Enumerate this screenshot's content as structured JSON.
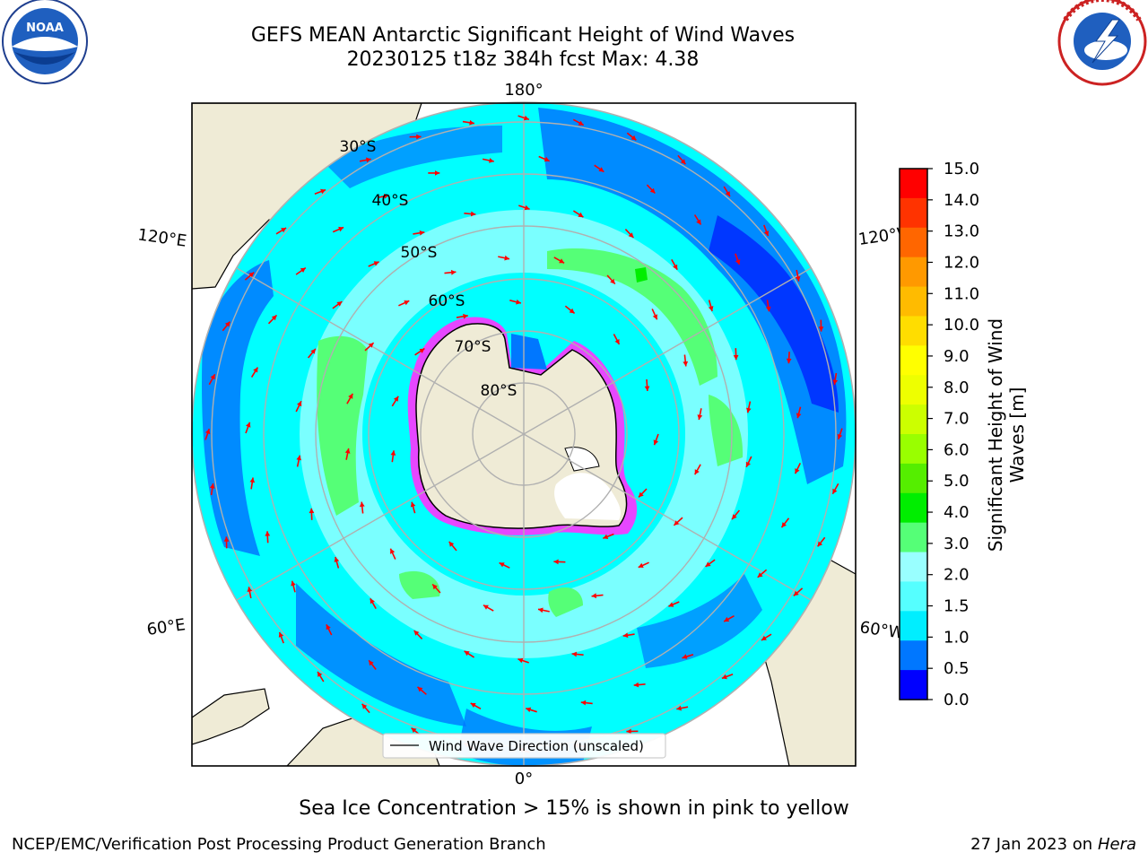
{
  "title": {
    "line1": "GEFS MEAN Antarctic Significant Height of Wind Waves",
    "line2": "20230125 t18z 384h fcst   Max: 4.38"
  },
  "logos": {
    "left": "NOAA",
    "left_ring_text": "NATIONAL OCEANIC AND ATMOSPHERIC ADMINISTRATION · U.S. DEPARTMENT OF COMMERCE",
    "right_ring_text": "NATIONAL WEATHER SERVICE"
  },
  "map": {
    "longitude_labels": {
      "top": "180°",
      "bottom": "0°",
      "upper_left": "120°E",
      "lower_left": "60°E",
      "upper_right": "120°W",
      "lower_right": "60°W"
    },
    "latitude_labels": [
      "30°S",
      "40°S",
      "50°S",
      "60°S",
      "70°S",
      "80°S"
    ],
    "legend": "Wind Wave Direction (unscaled)",
    "colors": {
      "ocean_base": "#00ffff",
      "land": "#efebd6",
      "arrow": "#ff0000",
      "grid": "#b0b0b0"
    }
  },
  "colorbar": {
    "title": "Significant Height of Wind Waves [m]",
    "ticks": [
      "15.0",
      "14.0",
      "13.0",
      "12.0",
      "11.0",
      "10.0",
      "9.0",
      "8.0",
      "7.0",
      "6.0",
      "5.0",
      "4.0",
      "3.0",
      "2.0",
      "1.5",
      "1.0",
      "0.5",
      "0.0"
    ],
    "colors_top_to_bottom": [
      "#ff0000",
      "#ff3300",
      "#ff6600",
      "#ff9900",
      "#ffbb00",
      "#ffdd00",
      "#ffff00",
      "#eeff00",
      "#ccff00",
      "#99ff00",
      "#55ee00",
      "#00ee00",
      "#55ff77",
      "#99ffff",
      "#55ffff",
      "#00eeff",
      "#0077ff",
      "#0000ff"
    ]
  },
  "caption": "Sea Ice Concentration > 15% is shown in pink to yellow",
  "footer": {
    "left": "NCEP/EMC/Verification Post Processing Product Generation Branch",
    "right_prefix": "27 Jan 2023 on ",
    "right_host": "Hera"
  }
}
